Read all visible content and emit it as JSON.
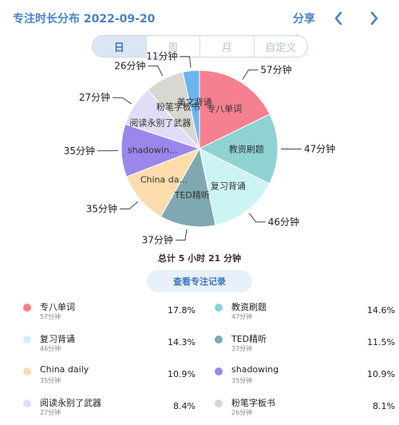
{
  "header": {
    "title": "专注时长分布 2022-09-20",
    "share_label": "分享"
  },
  "tabs": [
    "日",
    "周",
    "月",
    "自定义"
  ],
  "active_tab": 0,
  "summary": {
    "total_label": "总计 5 小时 21 分钟",
    "records_button": "查看专注记录"
  },
  "colors": {
    "accent": "#4a82c8",
    "slices": [
      "#f5808f",
      "#8fd2d2",
      "#cdf4f5",
      "#7fa9b1",
      "#fddcae",
      "#9c86ec",
      "#e2ddf6",
      "#d8d7d2",
      "#6ab6ec"
    ]
  },
  "chart_data": {
    "type": "pie",
    "unit": "分钟",
    "slices": [
      {
        "name": "专八单词",
        "pie_label": "专八单词",
        "value": 57,
        "value_label": "57分钟",
        "percent": "17.8%",
        "sub": "57分钟"
      },
      {
        "name": "教资刷题",
        "pie_label": "教资刷题",
        "value": 47,
        "value_label": "47分钟",
        "percent": "14.6%",
        "sub": "47分钟"
      },
      {
        "name": "复习背诵",
        "pie_label": "复习背诵",
        "value": 46,
        "value_label": "46分钟",
        "percent": "14.3%",
        "sub": "46分钟"
      },
      {
        "name": "TED精听",
        "pie_label": "TED精听",
        "value": 37,
        "value_label": "37分钟",
        "percent": "11.5%",
        "sub": "37分钟"
      },
      {
        "name": "China daily",
        "pie_label": "China da...",
        "value": 35,
        "value_label": "35分钟",
        "percent": "10.9%",
        "sub": "35分钟"
      },
      {
        "name": "shadowing",
        "pie_label": "shadowin...",
        "value": 35,
        "value_label": "35分钟",
        "percent": "10.9%",
        "sub": "35分钟"
      },
      {
        "name": "阅读永别了武器",
        "pie_label": "阅读永别了武器",
        "value": 27,
        "value_label": "27分钟",
        "percent": "8.4%",
        "sub": "27分钟"
      },
      {
        "name": "粉笔字板书",
        "pie_label": "粉笔字板书",
        "value": 26,
        "value_label": "26分钟",
        "percent": "8.1%",
        "sub": "26分钟"
      },
      {
        "name": "美文背诵",
        "pie_label": "美文背诵",
        "value": 11,
        "value_label": "11分钟",
        "percent": "",
        "sub": ""
      }
    ]
  }
}
